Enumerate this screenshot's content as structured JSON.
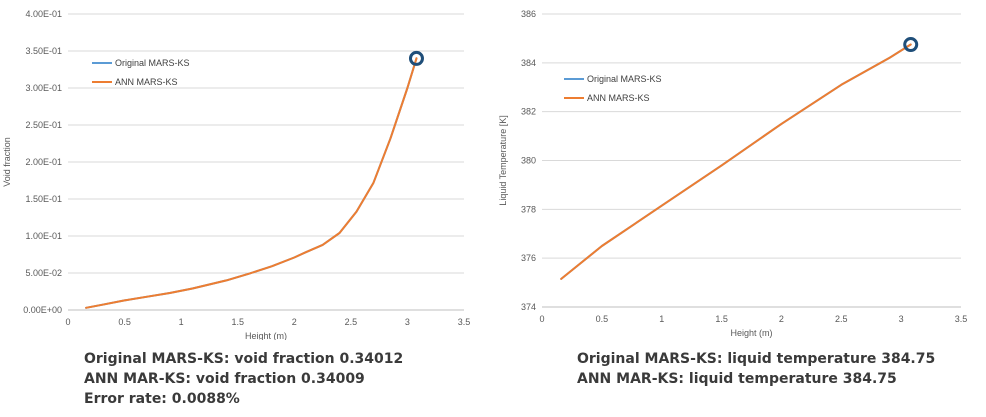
{
  "charts": [
    {
      "id": "left",
      "chart_data": {
        "type": "line",
        "xlabel": "Height (m)",
        "ylabel": "Void fraction",
        "xlim": [
          0,
          3.5
        ],
        "ylim": [
          0,
          0.4
        ],
        "x_ticks": [
          "0",
          "0.5",
          "1",
          "1.5",
          "2",
          "2.5",
          "3",
          "3.5"
        ],
        "y_ticks": [
          "0.00E+00",
          "5.00E-02",
          "1.00E-01",
          "1.50E-01",
          "2.00E-01",
          "2.50E-01",
          "3.00E-01",
          "3.50E-01",
          "4.00E-01"
        ],
        "grid": "horizontal",
        "legend_position": "top-left",
        "series": [
          {
            "name": "Original MARS-KS",
            "color": "#5b9bd5",
            "x": [
              0.16,
              0.3,
              0.5,
              0.7,
              0.9,
              1.1,
              1.4,
              1.6,
              1.8,
              2.0,
              2.1,
              2.25,
              2.4,
              2.55,
              2.7,
              2.85,
              3.0,
              3.08
            ],
            "y": [
              0.003,
              0.007,
              0.013,
              0.018,
              0.023,
              0.029,
              0.04,
              0.049,
              0.059,
              0.071,
              0.078,
              0.088,
              0.104,
              0.133,
              0.172,
              0.232,
              0.3,
              0.34012
            ]
          },
          {
            "name": "ANN MARS-KS",
            "color": "#ed7d31",
            "x": [
              0.16,
              0.3,
              0.5,
              0.7,
              0.9,
              1.1,
              1.4,
              1.6,
              1.8,
              2.0,
              2.1,
              2.25,
              2.4,
              2.55,
              2.7,
              2.85,
              3.0,
              3.08
            ],
            "y": [
              0.003,
              0.007,
              0.013,
              0.018,
              0.023,
              0.029,
              0.04,
              0.049,
              0.059,
              0.071,
              0.078,
              0.088,
              0.104,
              0.133,
              0.172,
              0.232,
              0.3,
              0.34009
            ]
          }
        ],
        "highlight": {
          "x": 3.08,
          "y": 0.34,
          "color": "#1f4e79"
        }
      },
      "caption": [
        "Original MARS-KS: void fraction 0.34012",
        "ANN MAR-KS: void fraction 0.34009",
        "Error rate: 0.0088%"
      ]
    },
    {
      "id": "right",
      "chart_data": {
        "type": "line",
        "xlabel": "Height (m)",
        "ylabel": "Liquid Temperature [K]",
        "xlim": [
          0,
          3.5
        ],
        "ylim": [
          374,
          386
        ],
        "x_ticks": [
          "0",
          "0.5",
          "1",
          "1.5",
          "2",
          "2.5",
          "3",
          "3.5"
        ],
        "y_ticks": [
          "374",
          "376",
          "378",
          "380",
          "382",
          "384",
          "386"
        ],
        "grid": "horizontal",
        "legend_position": "top-left",
        "series": [
          {
            "name": "Original MARS-KS",
            "color": "#5b9bd5",
            "x": [
              0.16,
              0.5,
              1.0,
              1.5,
              2.0,
              2.5,
              2.9,
              3.08
            ],
            "y": [
              375.15,
              376.5,
              378.15,
              379.8,
              381.5,
              383.1,
              384.2,
              384.75
            ]
          },
          {
            "name": "ANN MARS-KS",
            "color": "#ed7d31",
            "x": [
              0.16,
              0.5,
              1.0,
              1.5,
              2.0,
              2.5,
              2.9,
              3.08
            ],
            "y": [
              375.15,
              376.5,
              378.15,
              379.8,
              381.5,
              383.1,
              384.2,
              384.75
            ]
          }
        ],
        "highlight": {
          "x": 3.08,
          "y": 384.75,
          "color": "#1f4e79"
        }
      },
      "caption": [
        "Original MARS-KS: liquid temperature 384.75",
        "ANN MAR-KS: liquid temperature 384.75"
      ]
    }
  ]
}
